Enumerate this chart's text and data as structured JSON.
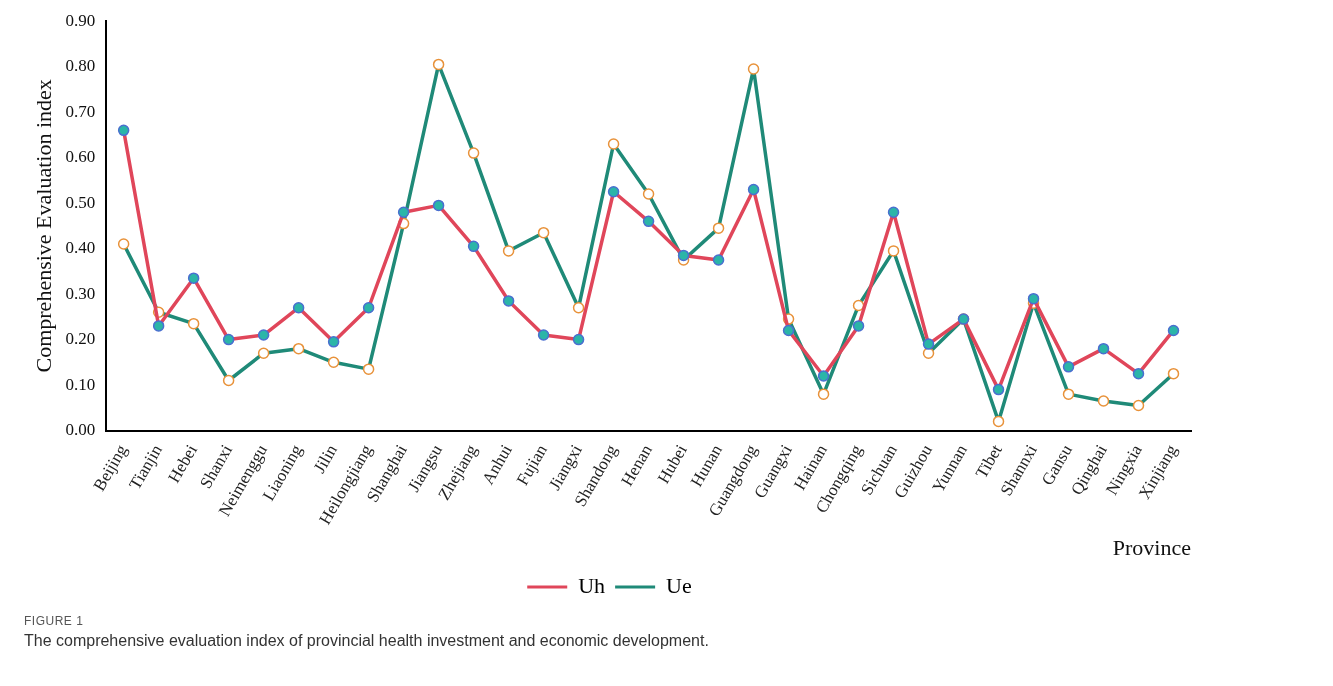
{
  "chart_data": {
    "type": "line",
    "xlabel": "Province",
    "ylabel": "Comprehensive Evaluation index",
    "categories": [
      "Beijing",
      "Tianjin",
      "Hebei",
      "Shanxi",
      "Neimenggu",
      "Liaoning",
      "Jilin",
      "Heilongjiang",
      "Shanghai",
      "Jiangsu",
      "Zhejiang",
      "Anhui",
      "Fujian",
      "Jiangxi",
      "Shandong",
      "Henan",
      "Hubei",
      "Hunan",
      "Guangdong",
      "Guangxi",
      "Hainan",
      "Chongqing",
      "Sichuan",
      "Guizhou",
      "Yunnan",
      "Tibet",
      "Shannxi",
      "Gansu",
      "Qinghai",
      "Ningxia",
      "Xinjiang"
    ],
    "series": [
      {
        "name": "Uh",
        "color": "#e0465a",
        "values": [
          0.66,
          0.23,
          0.335,
          0.2,
          0.21,
          0.27,
          0.195,
          0.27,
          0.48,
          0.495,
          0.405,
          0.285,
          0.21,
          0.2,
          0.525,
          0.46,
          0.385,
          0.375,
          0.53,
          0.22,
          0.12,
          0.23,
          0.48,
          0.19,
          0.245,
          0.09,
          0.29,
          0.14,
          0.18,
          0.125,
          0.22
        ]
      },
      {
        "name": "Ue",
        "color": "#1f8a78",
        "values": [
          0.41,
          0.26,
          0.235,
          0.11,
          0.17,
          0.18,
          0.15,
          0.135,
          0.455,
          0.805,
          0.61,
          0.395,
          0.435,
          0.27,
          0.63,
          0.52,
          0.375,
          0.445,
          0.795,
          0.245,
          0.08,
          0.275,
          0.395,
          0.17,
          0.245,
          0.02,
          0.28,
          0.08,
          0.065,
          0.055,
          0.125
        ]
      }
    ],
    "ylim": [
      0,
      0.9
    ],
    "yticks": [
      {
        "value": 0,
        "label": "0.00"
      },
      {
        "value": 0.1,
        "label": "0.10"
      },
      {
        "value": 0.2,
        "label": "0.20"
      },
      {
        "value": 0.3,
        "label": "0.30"
      },
      {
        "value": 0.4,
        "label": "0.40"
      },
      {
        "value": 0.5,
        "label": "0.50"
      },
      {
        "value": 0.6,
        "label": "0.60"
      },
      {
        "value": 0.7,
        "label": "0.70"
      },
      {
        "value": 0.8,
        "label": "0.80"
      },
      {
        "value": 0.9,
        "label": "0.90"
      }
    ],
    "grid": false,
    "legend": "bottom",
    "marker": "circle",
    "line_style": "solid",
    "annotations": [
      "FIGURE 1",
      "The comprehensive evaluation index of provincial health investment and economic development."
    ]
  }
}
